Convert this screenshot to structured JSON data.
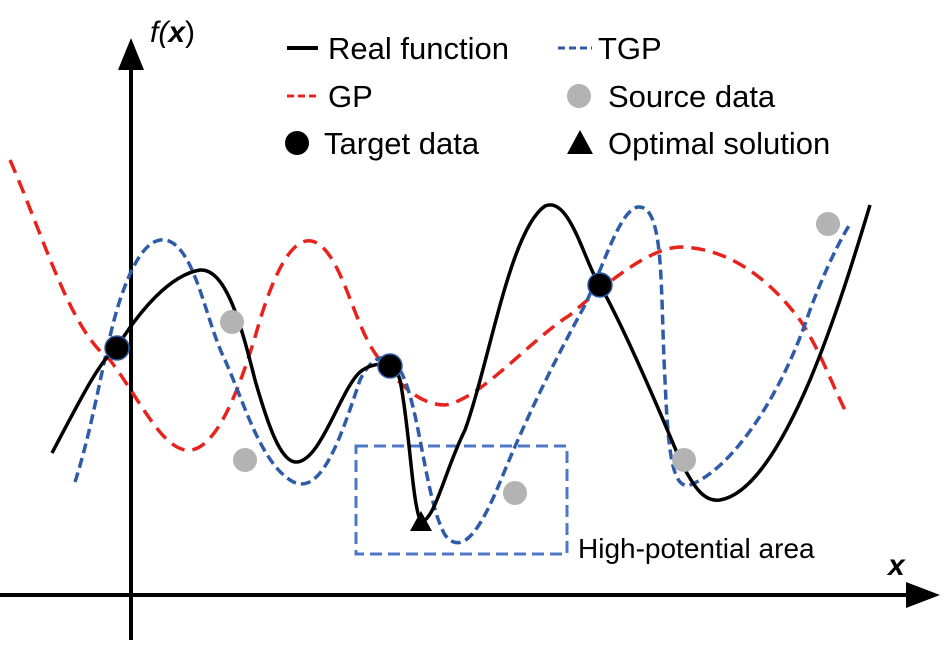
{
  "figure": {
    "y_axis_label_func": "f(",
    "y_axis_label_var": "x",
    "y_axis_label_close": ")",
    "x_axis_label": "x",
    "annotation": "High-potential area",
    "legend": [
      {
        "label": "Real function",
        "symbol": "solid-line",
        "color": "#000000"
      },
      {
        "label": "TGP",
        "symbol": "dashed-line",
        "color": "#2f5ba8"
      },
      {
        "label": "GP",
        "symbol": "dashed-line",
        "color": "#e8231d"
      },
      {
        "label": "Source data",
        "symbol": "circle",
        "color": "#b3b3b3"
      },
      {
        "label": "Target data",
        "symbol": "circle",
        "color": "#000000"
      },
      {
        "label": "Optimal solution",
        "symbol": "triangle",
        "color": "#000000"
      }
    ],
    "colors": {
      "real": "#000000",
      "tgp": "#2f5ba8",
      "gp": "#e8231d",
      "source": "#b3b3b3",
      "target": "#000000",
      "box": "#4f78c4"
    }
  }
}
